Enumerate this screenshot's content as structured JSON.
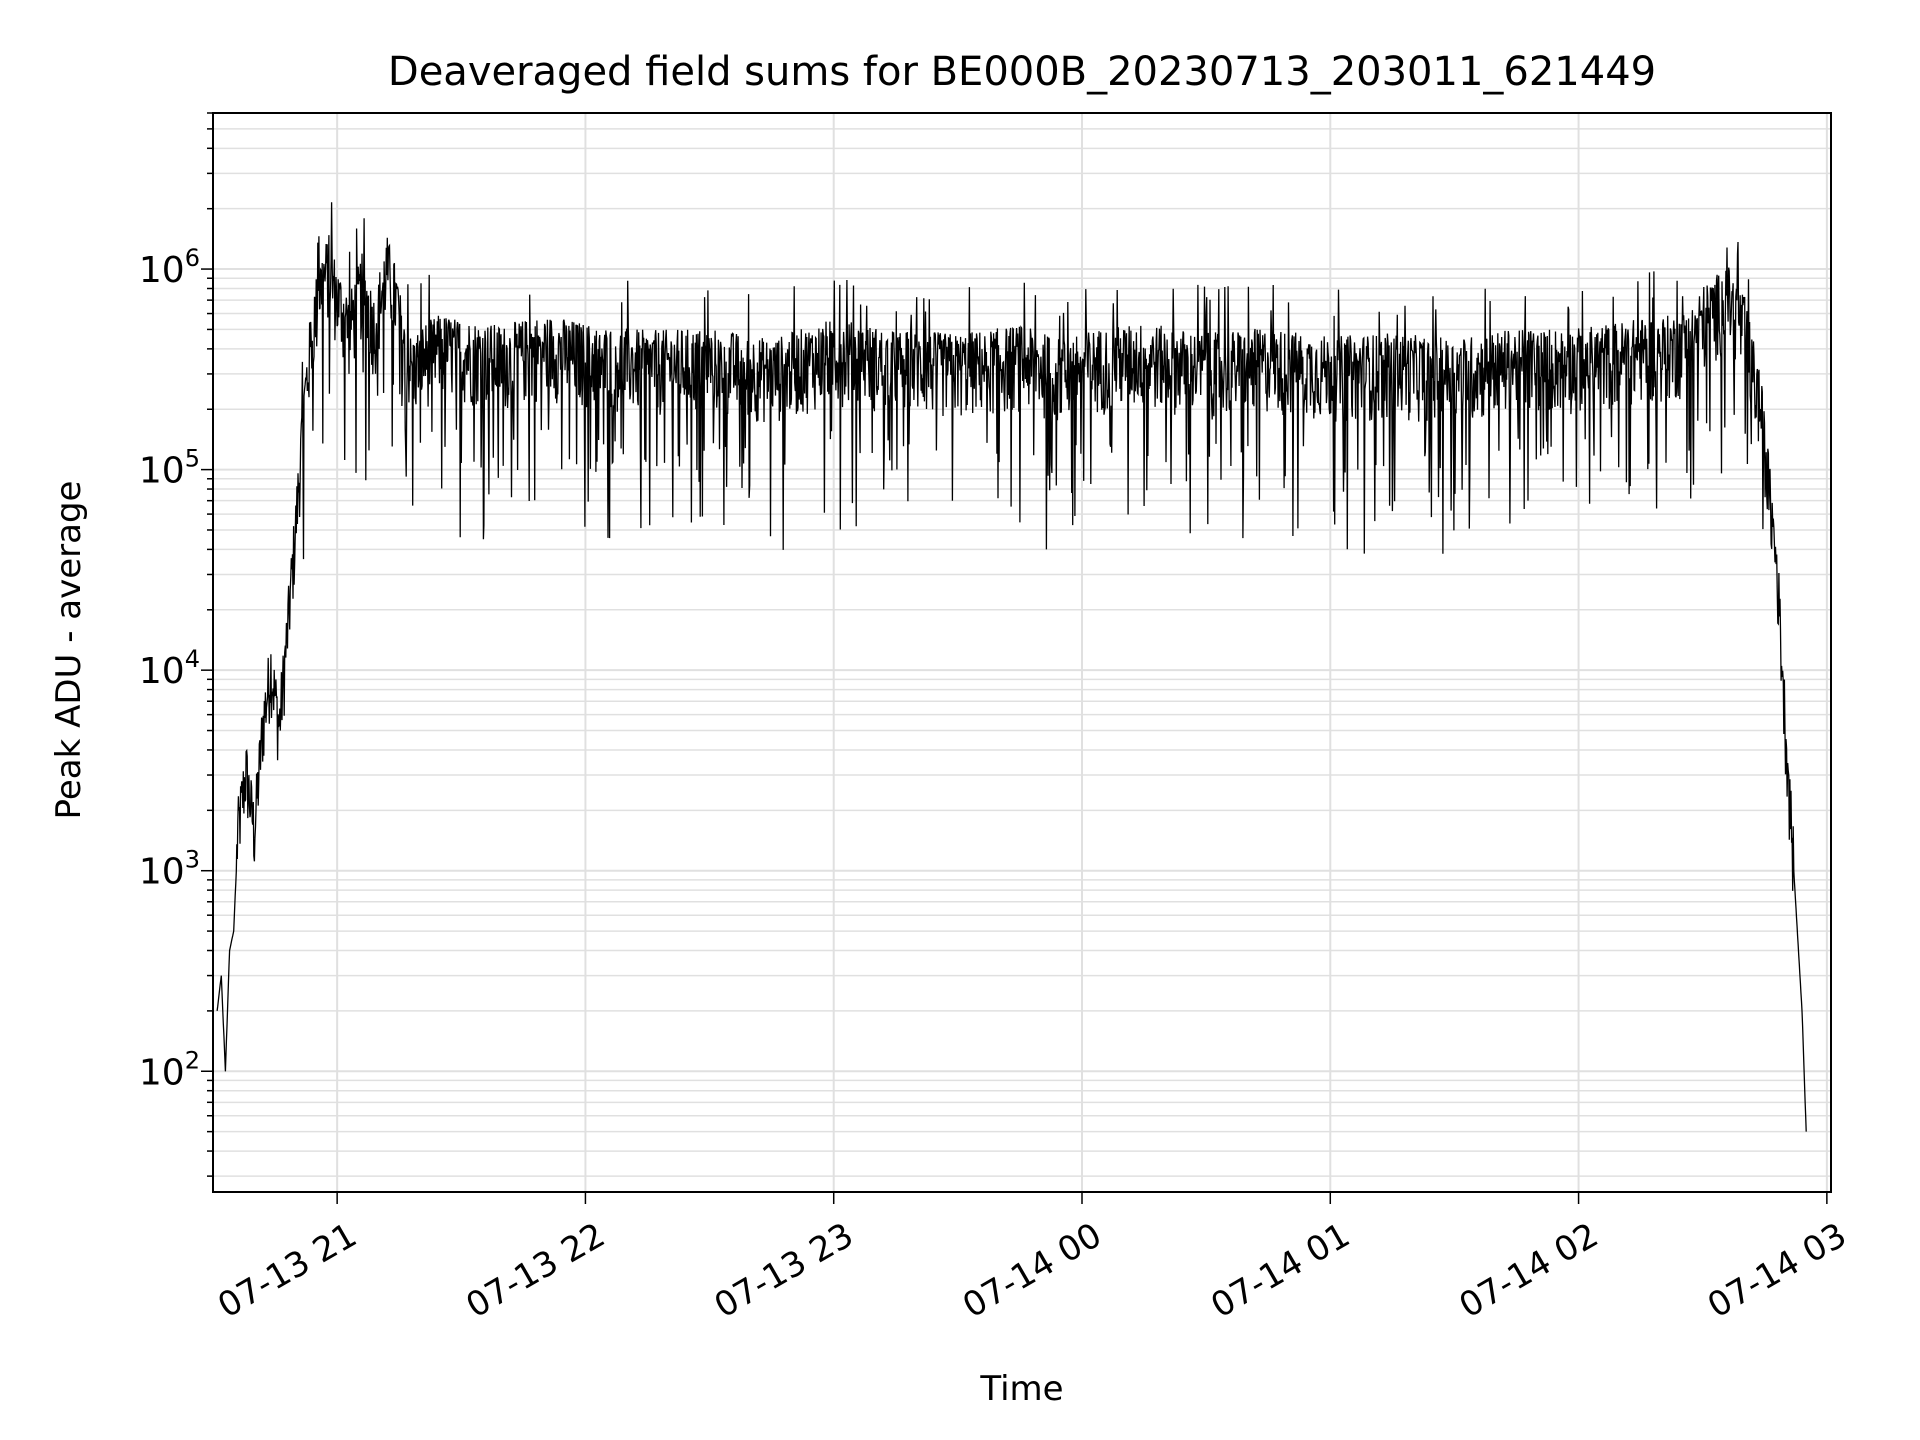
{
  "chart_data": {
    "type": "line",
    "title": "Deaveraged field sums for BE000B_20230713_203011_621449",
    "xlabel": "Time",
    "ylabel": "Peak ADU - average",
    "xscale": "time",
    "yscale": "log",
    "xlim": [
      "2023-07-13 20:30",
      "2023-07-14 03:01"
    ],
    "ylim": [
      25,
      6000000
    ],
    "grid": true,
    "legend": "none",
    "line_color": "#000000",
    "grid_color": "#e0e0e0",
    "x_ticks": [
      {
        "value": "2023-07-13 21:00",
        "label": "07-13 21"
      },
      {
        "value": "2023-07-13 22:00",
        "label": "07-13 22"
      },
      {
        "value": "2023-07-13 23:00",
        "label": "07-13 23"
      },
      {
        "value": "2023-07-14 00:00",
        "label": "07-14 00"
      },
      {
        "value": "2023-07-14 01:00",
        "label": "07-14 01"
      },
      {
        "value": "2023-07-14 02:00",
        "label": "07-14 02"
      },
      {
        "value": "2023-07-14 03:00",
        "label": "07-14 03"
      }
    ],
    "y_ticks": [
      {
        "value": 100,
        "base": "10",
        "exp": "2"
      },
      {
        "value": 1000,
        "base": "10",
        "exp": "3"
      },
      {
        "value": 10000,
        "base": "10",
        "exp": "4"
      },
      {
        "value": 100000,
        "base": "10",
        "exp": "5"
      },
      {
        "value": 1000000,
        "base": "10",
        "exp": "6"
      }
    ],
    "series": [
      {
        "x": [
          "2023-07-13 20:31",
          "2023-07-13 20:32",
          "2023-07-13 20:33",
          "2023-07-13 20:34",
          "2023-07-13 20:35",
          "2023-07-13 20:36",
          "2023-07-13 20:38",
          "2023-07-13 20:40",
          "2023-07-13 20:42",
          "2023-07-13 20:44",
          "2023-07-13 20:46",
          "2023-07-13 20:48",
          "2023-07-13 20:50",
          "2023-07-13 20:52",
          "2023-07-13 20:54",
          "2023-07-13 20:56",
          "2023-07-13 20:58",
          "2023-07-13 21:00",
          "2023-07-13 21:03",
          "2023-07-13 21:06",
          "2023-07-13 21:09",
          "2023-07-13 21:12",
          "2023-07-13 21:15",
          "2023-07-13 21:18",
          "2023-07-13 21:20",
          "2023-07-13 21:25",
          "2023-07-13 21:30",
          "2023-07-13 21:40",
          "2023-07-13 21:50",
          "2023-07-13 22:00",
          "2023-07-13 22:15",
          "2023-07-13 22:30",
          "2023-07-13 22:45",
          "2023-07-13 23:00",
          "2023-07-13 23:15",
          "2023-07-13 23:30",
          "2023-07-13 23:45",
          "2023-07-13 23:55",
          "2023-07-14 00:00",
          "2023-07-14 00:15",
          "2023-07-14 00:30",
          "2023-07-14 00:45",
          "2023-07-14 01:00",
          "2023-07-14 01:15",
          "2023-07-14 01:30",
          "2023-07-14 01:45",
          "2023-07-14 02:00",
          "2023-07-14 02:15",
          "2023-07-14 02:25",
          "2023-07-14 02:30",
          "2023-07-14 02:36",
          "2023-07-14 02:40",
          "2023-07-14 02:44",
          "2023-07-14 02:48",
          "2023-07-14 02:50",
          "2023-07-14 02:52",
          "2023-07-14 02:54",
          "2023-07-14 02:55"
        ],
        "y": [
          200,
          300,
          100,
          400,
          500,
          1500,
          3000,
          1500,
          5000,
          10000,
          5000,
          15000,
          50000,
          200000,
          500000,
          800000,
          1000000,
          700000,
          500000,
          800000,
          500000,
          1000000,
          600000,
          300000,
          350000,
          400000,
          380000,
          350000,
          400000,
          360000,
          330000,
          340000,
          300000,
          380000,
          330000,
          320000,
          350000,
          300000,
          330000,
          360000,
          320000,
          340000,
          310000,
          320000,
          300000,
          340000,
          340000,
          380000,
          400000,
          550000,
          700000,
          500000,
          200000,
          30000,
          5000,
          1000,
          200,
          50
        ]
      }
    ]
  }
}
